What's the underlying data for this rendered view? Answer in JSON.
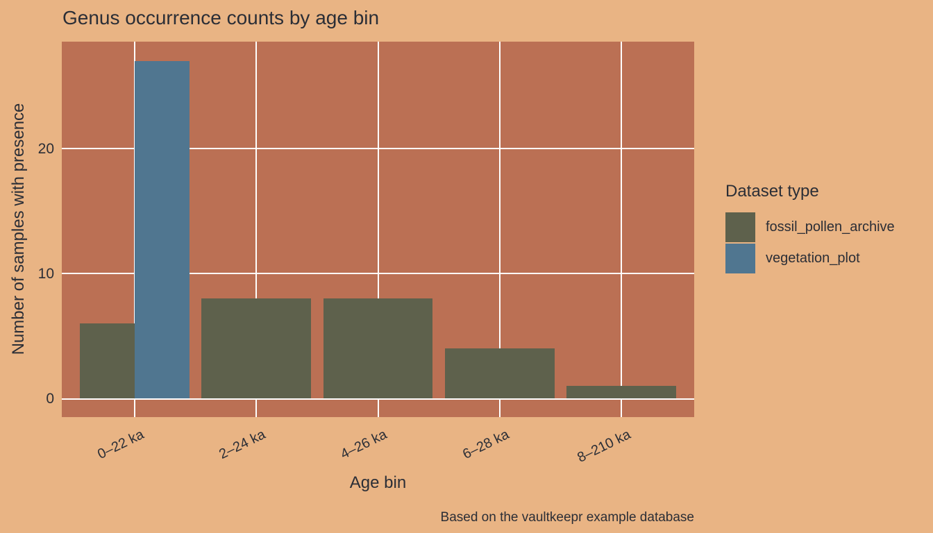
{
  "title": "Genus occurrence counts by age bin",
  "caption": "Based on the vaultkeepr example database",
  "legend": {
    "title": "Dataset type",
    "items": [
      "fossil_pollen_archive",
      "vegetation_plot"
    ]
  },
  "colors": {
    "background": "#e9b484",
    "panel": "#bb7054",
    "gridline": "#ffffff",
    "text": "#2b2e36",
    "fossil_pollen_archive": "#5e614c",
    "vegetation_plot": "#507690"
  },
  "chart_data": {
    "type": "bar",
    "title": "Genus occurrence counts by age bin",
    "xlabel": "Age bin",
    "ylabel": "Number of samples with presence",
    "caption": "Based on the vaultkeepr example database",
    "categories": [
      "0–22 ka",
      "2–24 ka",
      "4–26 ka",
      "6–28 ka",
      "8–210 ka"
    ],
    "series": [
      {
        "name": "fossil_pollen_archive",
        "color": "#5e614c",
        "values": [
          6,
          8,
          8,
          4,
          1
        ]
      },
      {
        "name": "vegetation_plot",
        "color": "#507690",
        "values": [
          27,
          0,
          0,
          0,
          0
        ]
      }
    ],
    "y_ticks": [
      0,
      10,
      20
    ],
    "ylim": [
      -1.5,
      28.5
    ],
    "grid": "major only, white lines on panel",
    "legend_title": "Dataset type",
    "legend_position": "right",
    "bar_mode": "dodge"
  }
}
